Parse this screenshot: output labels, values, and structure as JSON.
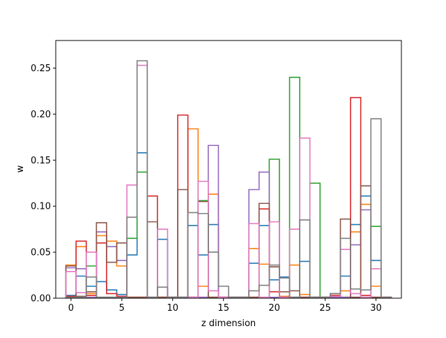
{
  "chart_data": {
    "type": "step",
    "title": "",
    "xlabel": "z dimension",
    "ylabel": "w",
    "xlim": [
      -1.5,
      32.5
    ],
    "ylim": [
      0,
      0.28
    ],
    "xticks": [
      0,
      5,
      10,
      15,
      20,
      25,
      30
    ],
    "yticks": [
      0.0,
      0.05,
      0.1,
      0.15,
      0.2,
      0.25
    ],
    "xtick_labels": [
      "0",
      "5",
      "10",
      "15",
      "20",
      "25",
      "30"
    ],
    "ytick_labels": [
      "0.00",
      "0.05",
      "0.10",
      "0.15",
      "0.20",
      "0.25"
    ],
    "grid": false,
    "legend": "none",
    "x": [
      0,
      1,
      2,
      3,
      4,
      5,
      6,
      7,
      8,
      9,
      10,
      11,
      12,
      13,
      14,
      15,
      16,
      17,
      18,
      19,
      20,
      21,
      22,
      23,
      24,
      25,
      26,
      27,
      28,
      29,
      30,
      31
    ],
    "series": [
      {
        "color": "#1f77b4",
        "values": [
          0.003,
          0.024,
          0.013,
          0.018,
          0.009,
          0.004,
          0.047,
          0.158,
          0.001,
          0.064,
          0.001,
          0.001,
          0.079,
          0.047,
          0.08,
          0.001,
          0.001,
          0.001,
          0.038,
          0.079,
          0.02,
          0.023,
          0.001,
          0.04,
          0.001,
          0.001,
          0.001,
          0.024,
          0.08,
          0.111,
          0.041,
          0.001
        ]
      },
      {
        "color": "#ff7f0e",
        "values": [
          0.036,
          0.056,
          0.005,
          0.068,
          0.062,
          0.035,
          0.001,
          0.001,
          0.001,
          0.001,
          0.001,
          0.001,
          0.184,
          0.013,
          0.113,
          0.001,
          0.001,
          0.001,
          0.054,
          0.037,
          0.034,
          0.002,
          0.036,
          0.004,
          0.001,
          0.001,
          0.001,
          0.008,
          0.072,
          0.102,
          0.013,
          0.001
        ]
      },
      {
        "color": "#2ca02c",
        "values": [
          0.001,
          0.001,
          0.035,
          0.001,
          0.001,
          0.001,
          0.065,
          0.137,
          0.001,
          0.001,
          0.001,
          0.001,
          0.001,
          0.106,
          0.001,
          0.001,
          0.001,
          0.001,
          0.001,
          0.001,
          0.151,
          0.001,
          0.24,
          0.001,
          0.125,
          0.001,
          0.001,
          0.001,
          0.001,
          0.001,
          0.078,
          0.001
        ]
      },
      {
        "color": "#d62728",
        "values": [
          0.002,
          0.062,
          0.003,
          0.06,
          0.005,
          0.002,
          0.001,
          0.001,
          0.111,
          0.001,
          0.001,
          0.199,
          0.001,
          0.001,
          0.001,
          0.001,
          0.001,
          0.001,
          0.001,
          0.097,
          0.007,
          0.001,
          0.001,
          0.001,
          0.001,
          0.001,
          0.003,
          0.001,
          0.218,
          0.003,
          0.001,
          0.001
        ]
      },
      {
        "color": "#9467bd",
        "values": [
          0.033,
          0.032,
          0.001,
          0.072,
          0.056,
          0.041,
          0.001,
          0.001,
          0.001,
          0.001,
          0.001,
          0.001,
          0.001,
          0.001,
          0.166,
          0.001,
          0.001,
          0.001,
          0.118,
          0.137,
          0.001,
          0.001,
          0.001,
          0.001,
          0.001,
          0.001,
          0.001,
          0.001,
          0.058,
          0.096,
          0.001,
          0.001
        ]
      },
      {
        "color": "#8c564b",
        "values": [
          0.035,
          0.002,
          0.007,
          0.082,
          0.039,
          0.06,
          0.001,
          0.001,
          0.083,
          0.001,
          0.001,
          0.118,
          0.001,
          0.105,
          0.001,
          0.001,
          0.001,
          0.001,
          0.001,
          0.103,
          0.034,
          0.007,
          0.008,
          0.001,
          0.001,
          0.001,
          0.005,
          0.086,
          0.001,
          0.122,
          0.001,
          0.001
        ]
      },
      {
        "color": "#e377c2",
        "values": [
          0.029,
          0.006,
          0.05,
          0.001,
          0.001,
          0.001,
          0.123,
          0.253,
          0.001,
          0.075,
          0.001,
          0.001,
          0.001,
          0.127,
          0.008,
          0.001,
          0.001,
          0.001,
          0.081,
          0.001,
          0.083,
          0.001,
          0.075,
          0.174,
          0.001,
          0.001,
          0.002,
          0.053,
          0.005,
          0.001,
          0.032,
          0.001
        ]
      },
      {
        "color": "#7f7f7f",
        "values": [
          0.001,
          0.001,
          0.023,
          0.001,
          0.001,
          0.001,
          0.088,
          0.258,
          0.001,
          0.012,
          0.001,
          0.001,
          0.093,
          0.092,
          0.05,
          0.013,
          0.001,
          0.001,
          0.008,
          0.014,
          0.036,
          0.022,
          0.001,
          0.085,
          0.001,
          0.001,
          0.005,
          0.065,
          0.01,
          0.009,
          0.195,
          0.001
        ]
      }
    ]
  }
}
